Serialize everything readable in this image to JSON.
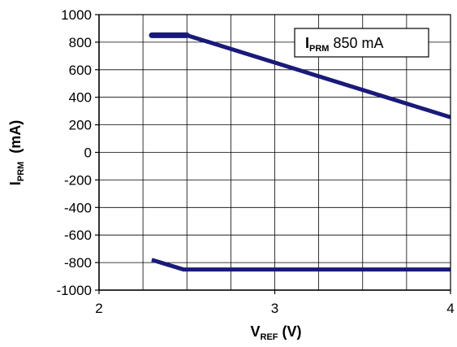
{
  "chart_data": {
    "type": "line",
    "xlabel": {
      "main": "V",
      "sub": "REF",
      "suffix": " (V)"
    },
    "ylabel": {
      "main": "I",
      "sub": "PRM",
      "suffix": "  (mA)"
    },
    "xlim": [
      2,
      4
    ],
    "ylim": [
      -1000,
      1000
    ],
    "x_ticks": [
      2,
      3,
      4
    ],
    "y_ticks": [
      1000,
      800,
      600,
      400,
      200,
      0,
      -200,
      -400,
      -600,
      -800,
      -1000
    ],
    "x_grid_step": 0.25,
    "y_grid_step": 200,
    "grid": true,
    "legend": {
      "main": "I",
      "sub": "PRM",
      "value": " 850 mA",
      "position": "top-right"
    },
    "line_color": "#1a1a7a",
    "series": [
      {
        "points": [
          [
            2.3,
            850
          ],
          [
            2.5,
            850
          ],
          [
            4.0,
            255
          ]
        ]
      },
      {
        "points": [
          [
            2.3,
            -780
          ],
          [
            2.48,
            -850
          ],
          [
            4.0,
            -850
          ]
        ]
      }
    ]
  }
}
